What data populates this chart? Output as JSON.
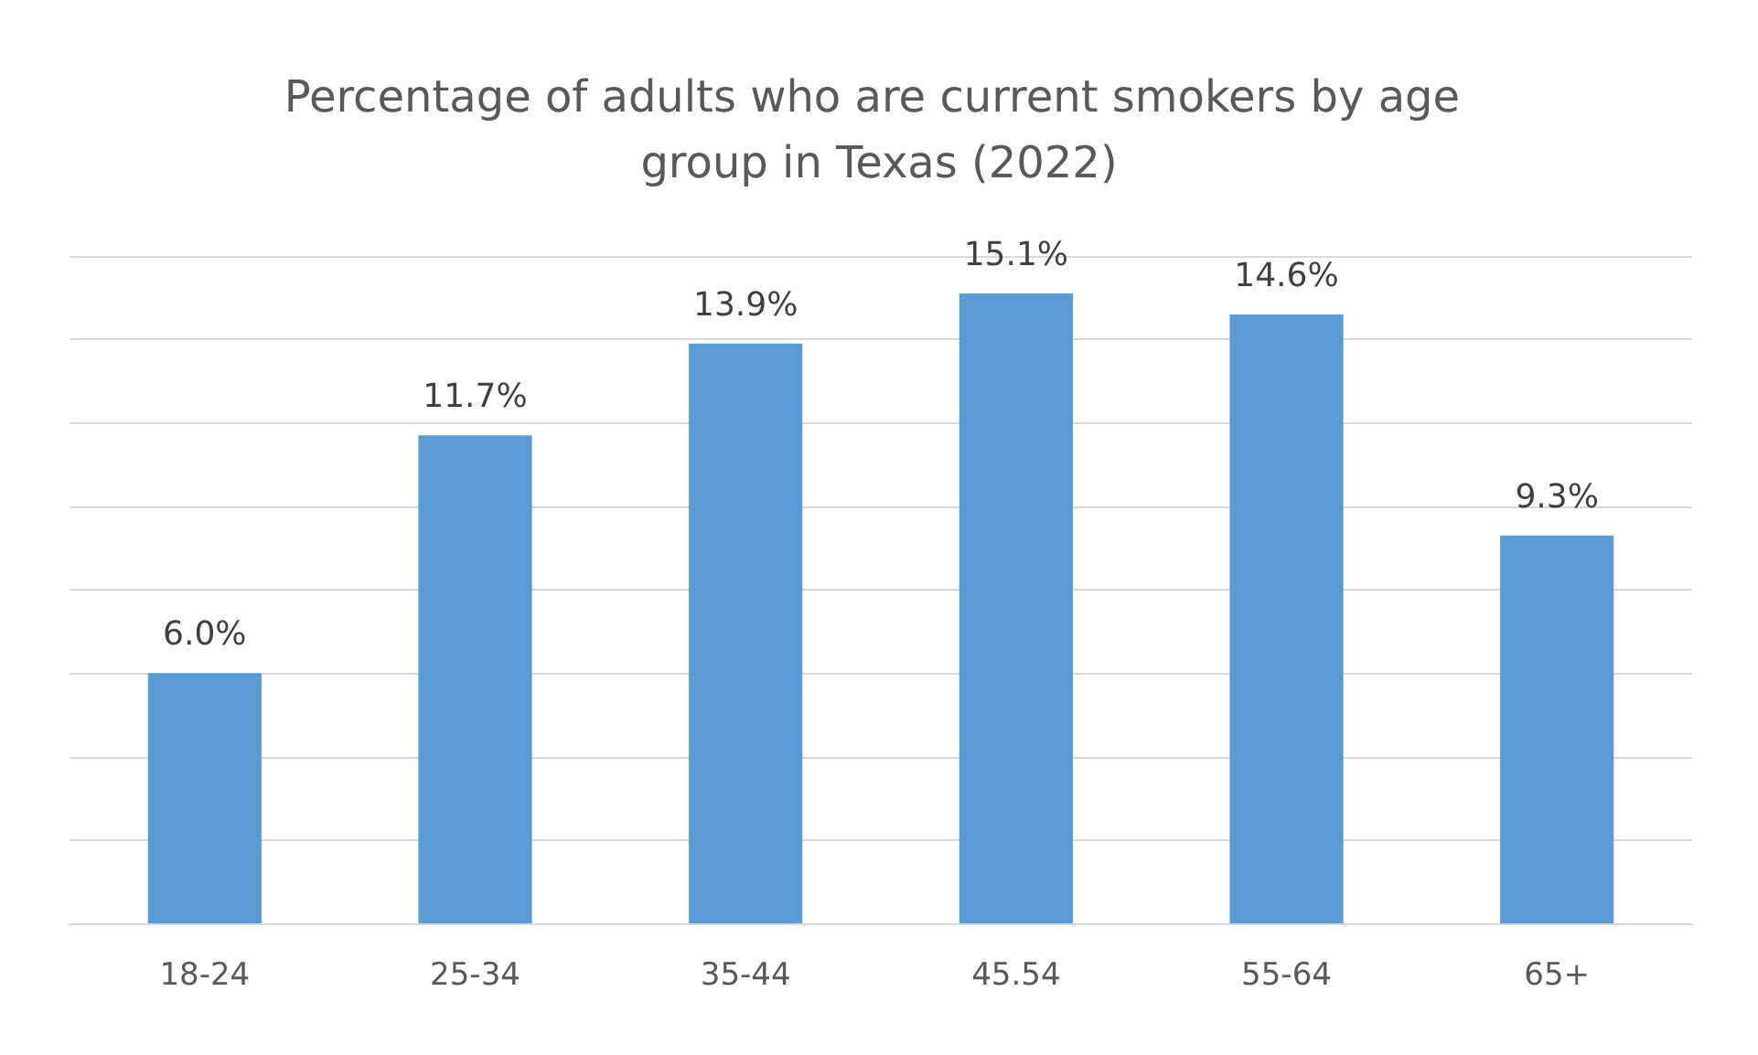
{
  "chart_data": {
    "type": "bar",
    "title": "Percentage of adults who are current smokers by age group in Texas (2022)",
    "categories": [
      "18-24",
      "25-34",
      "35-44",
      "45.54",
      "55-64",
      "65+"
    ],
    "values": [
      6.0,
      11.7,
      13.9,
      15.1,
      14.6,
      9.3
    ],
    "value_labels": [
      "6.0%",
      "11.7%",
      "13.9%",
      "15.1%",
      "14.6%",
      "9.3%"
    ],
    "color": "#5b9bd5",
    "ylim": [
      0,
      16
    ],
    "yticks": [
      {
        "value": 0,
        "label": null
      },
      {
        "value": 2,
        "label": null
      },
      {
        "value": 4,
        "label": null
      },
      {
        "value": 6,
        "label": null
      },
      {
        "value": 8,
        "label": null
      },
      {
        "value": 10,
        "label": null
      },
      {
        "value": 12,
        "label": null
      },
      {
        "value": 14,
        "label": null
      },
      {
        "value": 16,
        "label": null
      }
    ],
    "grid": "y",
    "tick_labels": "x"
  }
}
